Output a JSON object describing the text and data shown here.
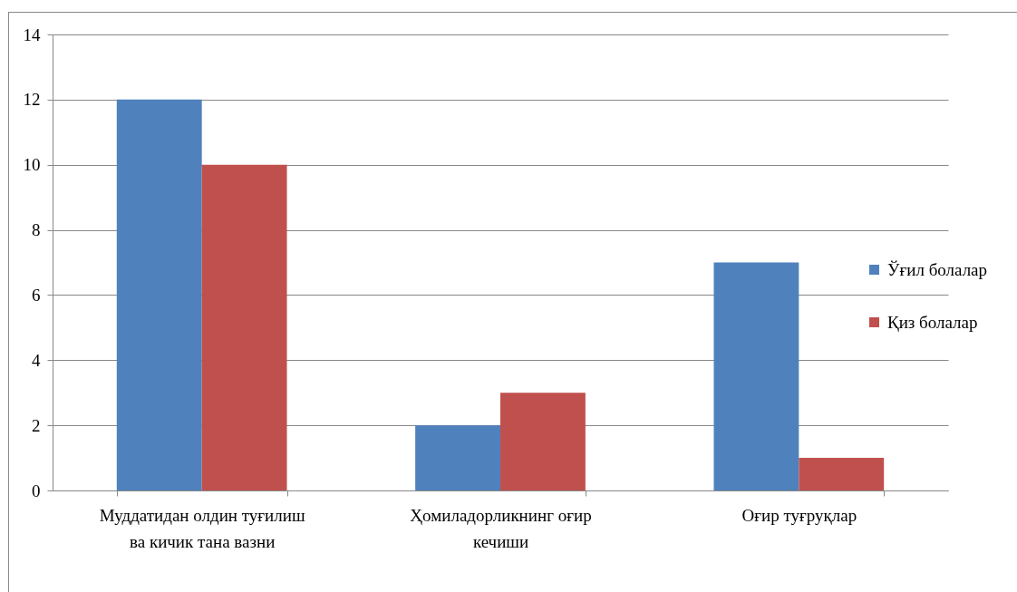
{
  "chart_data": {
    "type": "bar",
    "categories": [
      "Муддатидан олдин туғилиш ва кичик тана вазни",
      "Ҳомиладорликнинг оғир кечиши",
      "Оғир туғруқлар"
    ],
    "series": [
      {
        "name": "Ўғил болалар",
        "color": "#4f81bd",
        "values": [
          12,
          2,
          7
        ]
      },
      {
        "name": "Қиз болалар",
        "color": "#c0504d",
        "values": [
          10,
          3,
          1
        ]
      }
    ],
    "ylim": [
      0,
      14
    ],
    "yticks": [
      0,
      2,
      4,
      6,
      8,
      10,
      12,
      14
    ],
    "grid": "y",
    "legend": "right"
  }
}
